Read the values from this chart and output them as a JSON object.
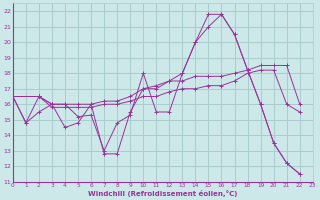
{
  "xlabel": "Windchill (Refroidissement éolien,°C)",
  "background_color": "#cce8e8",
  "grid_color": "#aacccc",
  "line_color": "#993399",
  "xlim": [
    0,
    23
  ],
  "ylim": [
    11,
    22.5
  ],
  "xticks": [
    0,
    1,
    2,
    3,
    4,
    5,
    6,
    7,
    8,
    9,
    10,
    11,
    12,
    13,
    14,
    15,
    16,
    17,
    18,
    19,
    20,
    21,
    22,
    23
  ],
  "yticks": [
    11,
    12,
    13,
    14,
    15,
    16,
    17,
    18,
    19,
    20,
    21,
    22
  ],
  "lines": [
    {
      "x": [
        0,
        1,
        2,
        3,
        4,
        5,
        6,
        7,
        8,
        9,
        10,
        11,
        12,
        13,
        14,
        15,
        16,
        17,
        18,
        19,
        20,
        21,
        22,
        23
      ],
      "y": [
        16.5,
        14.8,
        16.5,
        16.0,
        16.0,
        15.2,
        15.3,
        13.0,
        14.8,
        15.3,
        18.0,
        15.5,
        15.5,
        18.0,
        20.0,
        21.8,
        21.8,
        20.5,
        18.2,
        16.0,
        13.5,
        12.2,
        11.5,
        null
      ]
    },
    {
      "x": [
        0,
        1,
        2,
        3,
        4,
        5,
        6,
        7,
        8,
        9,
        10,
        11,
        12,
        13,
        14,
        15,
        16,
        17,
        18,
        19,
        20,
        21,
        22,
        23
      ],
      "y": [
        16.5,
        14.8,
        15.5,
        16.0,
        14.5,
        14.8,
        16.0,
        12.8,
        12.8,
        15.5,
        17.0,
        17.0,
        17.5,
        18.0,
        20.0,
        21.0,
        21.8,
        20.5,
        18.2,
        16.0,
        13.5,
        12.2,
        11.5,
        null
      ]
    },
    {
      "x": [
        0,
        2,
        3,
        4,
        5,
        6,
        7,
        8,
        9,
        10,
        11,
        12,
        13,
        14,
        15,
        16,
        17,
        18,
        19,
        20,
        21,
        22,
        23
      ],
      "y": [
        16.5,
        16.5,
        15.8,
        15.8,
        15.8,
        15.8,
        16.0,
        16.0,
        16.2,
        16.5,
        16.5,
        16.8,
        17.0,
        17.0,
        17.2,
        17.2,
        17.5,
        18.0,
        18.2,
        18.2,
        16.0,
        15.5,
        null
      ]
    },
    {
      "x": [
        0,
        2,
        3,
        4,
        5,
        6,
        7,
        8,
        9,
        10,
        11,
        12,
        13,
        14,
        15,
        16,
        17,
        18,
        19,
        20,
        21,
        22,
        23
      ],
      "y": [
        16.5,
        16.5,
        16.0,
        16.0,
        16.0,
        16.0,
        16.2,
        16.2,
        16.5,
        17.0,
        17.2,
        17.5,
        17.5,
        17.8,
        17.8,
        17.8,
        18.0,
        18.2,
        18.5,
        18.5,
        18.5,
        16.0,
        null
      ]
    }
  ]
}
